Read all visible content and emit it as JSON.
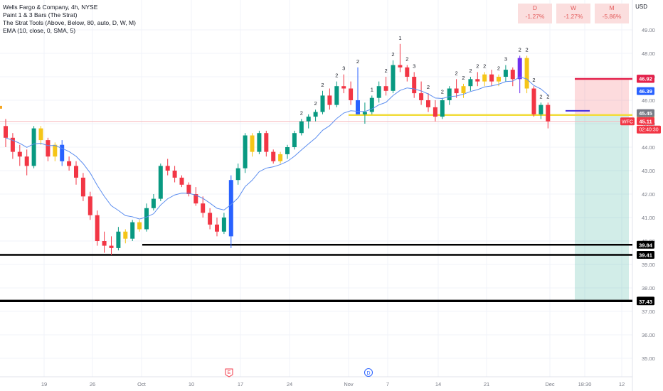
{
  "header": {
    "legend": [
      "Wells Fargo & Company, 4h, NYSE",
      "Paint 1 & 3 Bars (The Strat)",
      "The Strat Tools (Above, Below, 80, auto, D, W, M)",
      "EMA (10, close, 0, SMA, 5)"
    ],
    "currency": "USD",
    "timeframes": [
      {
        "label": "D",
        "value": "-1.27%"
      },
      {
        "label": "W",
        "value": "-1.27%"
      },
      {
        "label": "M",
        "value": "-5.86%"
      }
    ]
  },
  "chart_data": {
    "type": "candlestick",
    "ylim": [
      35,
      49.5
    ],
    "y_ticks": [
      "49.00",
      "48.00",
      "47.00",
      "46.00",
      "45.00",
      "44.00",
      "43.00",
      "42.00",
      "41.00",
      "40.00",
      "39.00",
      "38.00",
      "37.00",
      "36.00",
      "35.00"
    ],
    "x_ticks": [
      "19",
      "26",
      "Oct",
      "10",
      "17",
      "24",
      "Nov",
      "7",
      "14",
      "21",
      "Dec",
      "18:30",
      "12"
    ],
    "ohlc": [
      [
        44.9,
        45.2,
        44.0,
        44.4
      ],
      [
        44.4,
        44.6,
        43.5,
        43.8
      ],
      [
        43.8,
        44.1,
        43.2,
        43.6
      ],
      [
        43.6,
        43.9,
        42.8,
        43.2
      ],
      [
        43.2,
        44.9,
        43.1,
        44.8
      ],
      [
        44.8,
        44.9,
        44.1,
        44.3
      ],
      [
        44.3,
        44.4,
        43.4,
        43.6
      ],
      [
        43.6,
        44.2,
        43.4,
        44.1
      ],
      [
        44.1,
        44.3,
        43.2,
        43.4
      ],
      [
        43.4,
        43.6,
        43.0,
        43.2
      ],
      [
        43.2,
        43.4,
        42.4,
        42.7
      ],
      [
        42.7,
        42.9,
        41.7,
        41.9
      ],
      [
        41.9,
        42.1,
        40.9,
        41.1
      ],
      [
        41.1,
        41.3,
        39.8,
        40.0
      ],
      [
        40.0,
        40.4,
        39.5,
        39.8
      ],
      [
        39.8,
        40.2,
        39.4,
        39.7
      ],
      [
        39.7,
        40.6,
        39.6,
        40.4
      ],
      [
        40.4,
        40.5,
        39.9,
        40.1
      ],
      [
        40.1,
        40.9,
        40.0,
        40.8
      ],
      [
        40.8,
        40.9,
        40.4,
        40.5
      ],
      [
        40.5,
        41.6,
        40.4,
        41.4
      ],
      [
        41.4,
        42.0,
        41.3,
        41.8
      ],
      [
        41.8,
        43.3,
        41.7,
        43.2
      ],
      [
        43.2,
        43.5,
        42.8,
        43.0
      ],
      [
        43.0,
        43.2,
        42.5,
        42.7
      ],
      [
        42.7,
        42.8,
        42.3,
        42.4
      ],
      [
        42.4,
        42.5,
        41.9,
        42.0
      ],
      [
        42.0,
        42.3,
        41.5,
        41.6
      ],
      [
        41.6,
        41.9,
        41.0,
        41.2
      ],
      [
        41.2,
        41.4,
        40.5,
        40.7
      ],
      [
        40.7,
        41.0,
        40.2,
        40.4
      ],
      [
        40.4,
        41.2,
        40.3,
        41.0
      ],
      [
        40.2,
        42.8,
        39.7,
        42.6
      ],
      [
        42.6,
        43.3,
        42.4,
        43.1
      ],
      [
        43.1,
        44.6,
        42.9,
        44.5
      ],
      [
        44.5,
        44.6,
        43.6,
        43.8
      ],
      [
        43.8,
        44.7,
        43.7,
        44.6
      ],
      [
        44.6,
        44.7,
        43.6,
        43.8
      ],
      [
        43.8,
        43.9,
        43.3,
        43.4
      ],
      [
        43.4,
        43.8,
        43.3,
        43.7
      ],
      [
        43.7,
        44.1,
        43.5,
        44.0
      ],
      [
        44.0,
        44.7,
        43.9,
        44.6
      ],
      [
        44.6,
        45.2,
        44.5,
        45.1
      ],
      [
        45.1,
        45.4,
        44.8,
        45.3
      ],
      [
        45.3,
        45.6,
        45.1,
        45.5
      ],
      [
        45.5,
        46.4,
        45.4,
        46.2
      ],
      [
        46.2,
        46.5,
        45.6,
        45.8
      ],
      [
        45.8,
        46.8,
        45.7,
        46.6
      ],
      [
        46.6,
        47.1,
        46.3,
        46.5
      ],
      [
        46.5,
        46.8,
        45.8,
        46.0
      ],
      [
        46.0,
        47.4,
        45.4,
        45.4
      ],
      [
        45.4,
        45.9,
        45.0,
        45.5
      ],
      [
        45.5,
        46.2,
        45.4,
        46.1
      ],
      [
        46.1,
        46.8,
        45.9,
        46.6
      ],
      [
        46.6,
        47.0,
        46.2,
        46.4
      ],
      [
        46.4,
        47.7,
        46.3,
        47.5
      ],
      [
        47.5,
        48.4,
        47.2,
        47.4
      ],
      [
        47.4,
        47.5,
        46.8,
        47.0
      ],
      [
        47.0,
        47.2,
        46.1,
        46.3
      ],
      [
        46.3,
        46.8,
        45.8,
        46.0
      ],
      [
        46.0,
        46.3,
        45.5,
        45.7
      ],
      [
        45.7,
        46.0,
        45.1,
        45.3
      ],
      [
        45.3,
        46.1,
        45.2,
        46.0
      ],
      [
        46.0,
        46.6,
        45.8,
        46.5
      ],
      [
        46.5,
        46.9,
        46.1,
        46.3
      ],
      [
        46.3,
        46.7,
        46.1,
        46.6
      ],
      [
        46.6,
        47.0,
        46.4,
        46.9
      ],
      [
        46.9,
        47.2,
        46.6,
        46.8
      ],
      [
        46.8,
        47.2,
        46.6,
        47.1
      ],
      [
        47.1,
        47.3,
        46.6,
        46.8
      ],
      [
        46.8,
        47.1,
        46.6,
        47.0
      ],
      [
        47.0,
        47.5,
        46.8,
        47.3
      ],
      [
        47.3,
        47.4,
        46.6,
        46.9
      ],
      [
        46.9,
        47.9,
        46.3,
        47.8
      ],
      [
        47.8,
        47.9,
        46.3,
        46.5
      ],
      [
        46.5,
        46.6,
        45.3,
        45.4
      ],
      [
        45.4,
        45.9,
        45.2,
        45.8
      ],
      [
        45.8,
        45.9,
        44.8,
        45.1
      ]
    ],
    "ema_label": "EMA 10",
    "level_lines": [
      {
        "label": "39.84",
        "value": 39.84,
        "color": "#000000"
      },
      {
        "label": "39.41",
        "value": 39.41,
        "color": "#000000"
      },
      {
        "label": "37.46",
        "value": 37.46,
        "color": "#000000"
      },
      {
        "label": "37.43",
        "value": 37.43,
        "color": "#000000"
      },
      {
        "label": "45.37",
        "value": 45.37,
        "color": "#f1dc3c"
      },
      {
        "label": "46.91",
        "value": 46.91,
        "color": "#e3204a"
      }
    ],
    "price_badges": [
      {
        "label": "46.92",
        "value": 46.92,
        "color": "#e3204a"
      },
      {
        "label": "46.39",
        "value": 46.39,
        "color": "#2962ff"
      },
      {
        "label": "45.45",
        "value": 45.45,
        "color": "#787b86"
      },
      {
        "label": "45.11",
        "value": 45.11,
        "color": "#f23645"
      }
    ],
    "ticker_label": "WFC",
    "countdown": "02:40:30",
    "position": {
      "entry": 45.37,
      "stop": 46.91,
      "target": 37.46
    },
    "event_markers": [
      "E",
      "D"
    ],
    "strat_labels": [
      {
        "i": 42,
        "text": "2"
      },
      {
        "i": 44,
        "text": "2"
      },
      {
        "i": 45,
        "text": "2"
      },
      {
        "i": 47,
        "text": "2"
      },
      {
        "i": 48,
        "text": "3"
      },
      {
        "i": 50,
        "text": "2"
      },
      {
        "i": 52,
        "text": "1"
      },
      {
        "i": 54,
        "text": "2"
      },
      {
        "i": 55,
        "text": "2"
      },
      {
        "i": 56,
        "text": "1"
      },
      {
        "i": 57,
        "text": "2"
      },
      {
        "i": 58,
        "text": "3"
      },
      {
        "i": 60,
        "text": "2"
      },
      {
        "i": 62,
        "text": "2"
      },
      {
        "i": 64,
        "text": "2"
      },
      {
        "i": 65,
        "text": "2"
      },
      {
        "i": 66,
        "text": "2"
      },
      {
        "i": 67,
        "text": "2"
      },
      {
        "i": 68,
        "text": "2"
      },
      {
        "i": 70,
        "text": "2"
      },
      {
        "i": 71,
        "text": "3"
      },
      {
        "i": 73,
        "text": "2"
      },
      {
        "i": 74,
        "text": "2"
      },
      {
        "i": 75,
        "text": "2"
      },
      {
        "i": 76,
        "text": "2"
      },
      {
        "i": 77,
        "text": "2"
      }
    ]
  }
}
